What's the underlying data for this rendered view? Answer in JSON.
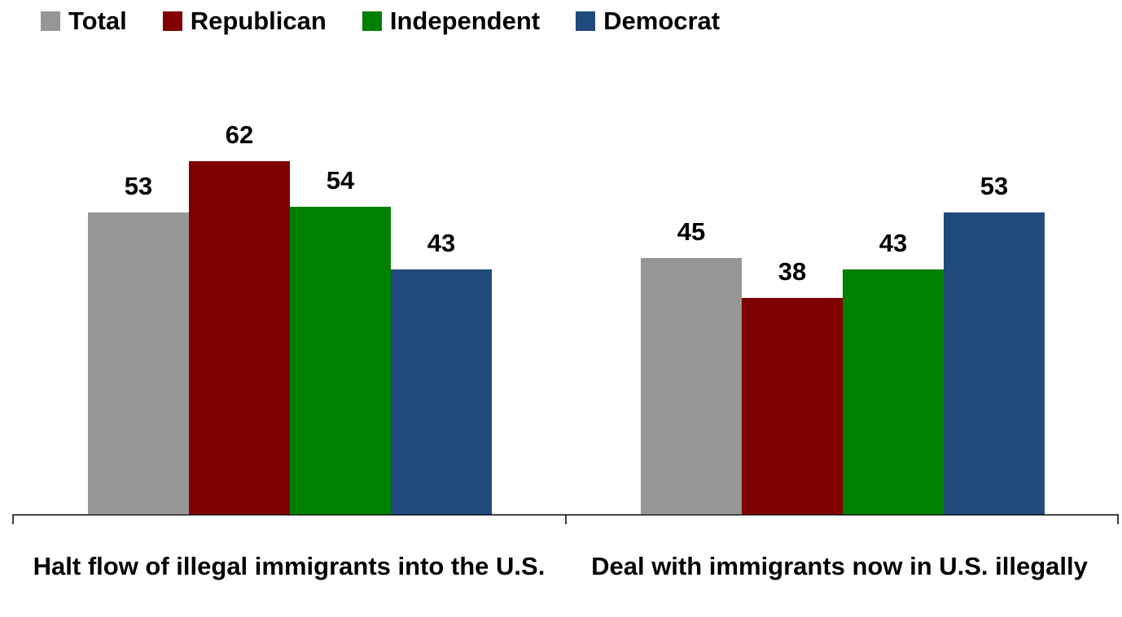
{
  "chart_data": {
    "type": "bar",
    "categories": [
      "Halt flow of illegal immigrants into the U.S.",
      "Deal with immigrants now in U.S. illegally"
    ],
    "series": [
      {
        "name": "Total",
        "color": "#969696",
        "values": [
          53,
          45
        ]
      },
      {
        "name": "Republican",
        "color": "#800000",
        "values": [
          62,
          38
        ]
      },
      {
        "name": "Independent",
        "color": "#008000",
        "values": [
          54,
          43
        ]
      },
      {
        "name": "Democrat",
        "color": "#204a7c",
        "values": [
          43,
          53
        ]
      }
    ],
    "ylim": [
      0,
      70
    ],
    "grid": false,
    "legend_position": "top-left",
    "data_labels": true
  }
}
